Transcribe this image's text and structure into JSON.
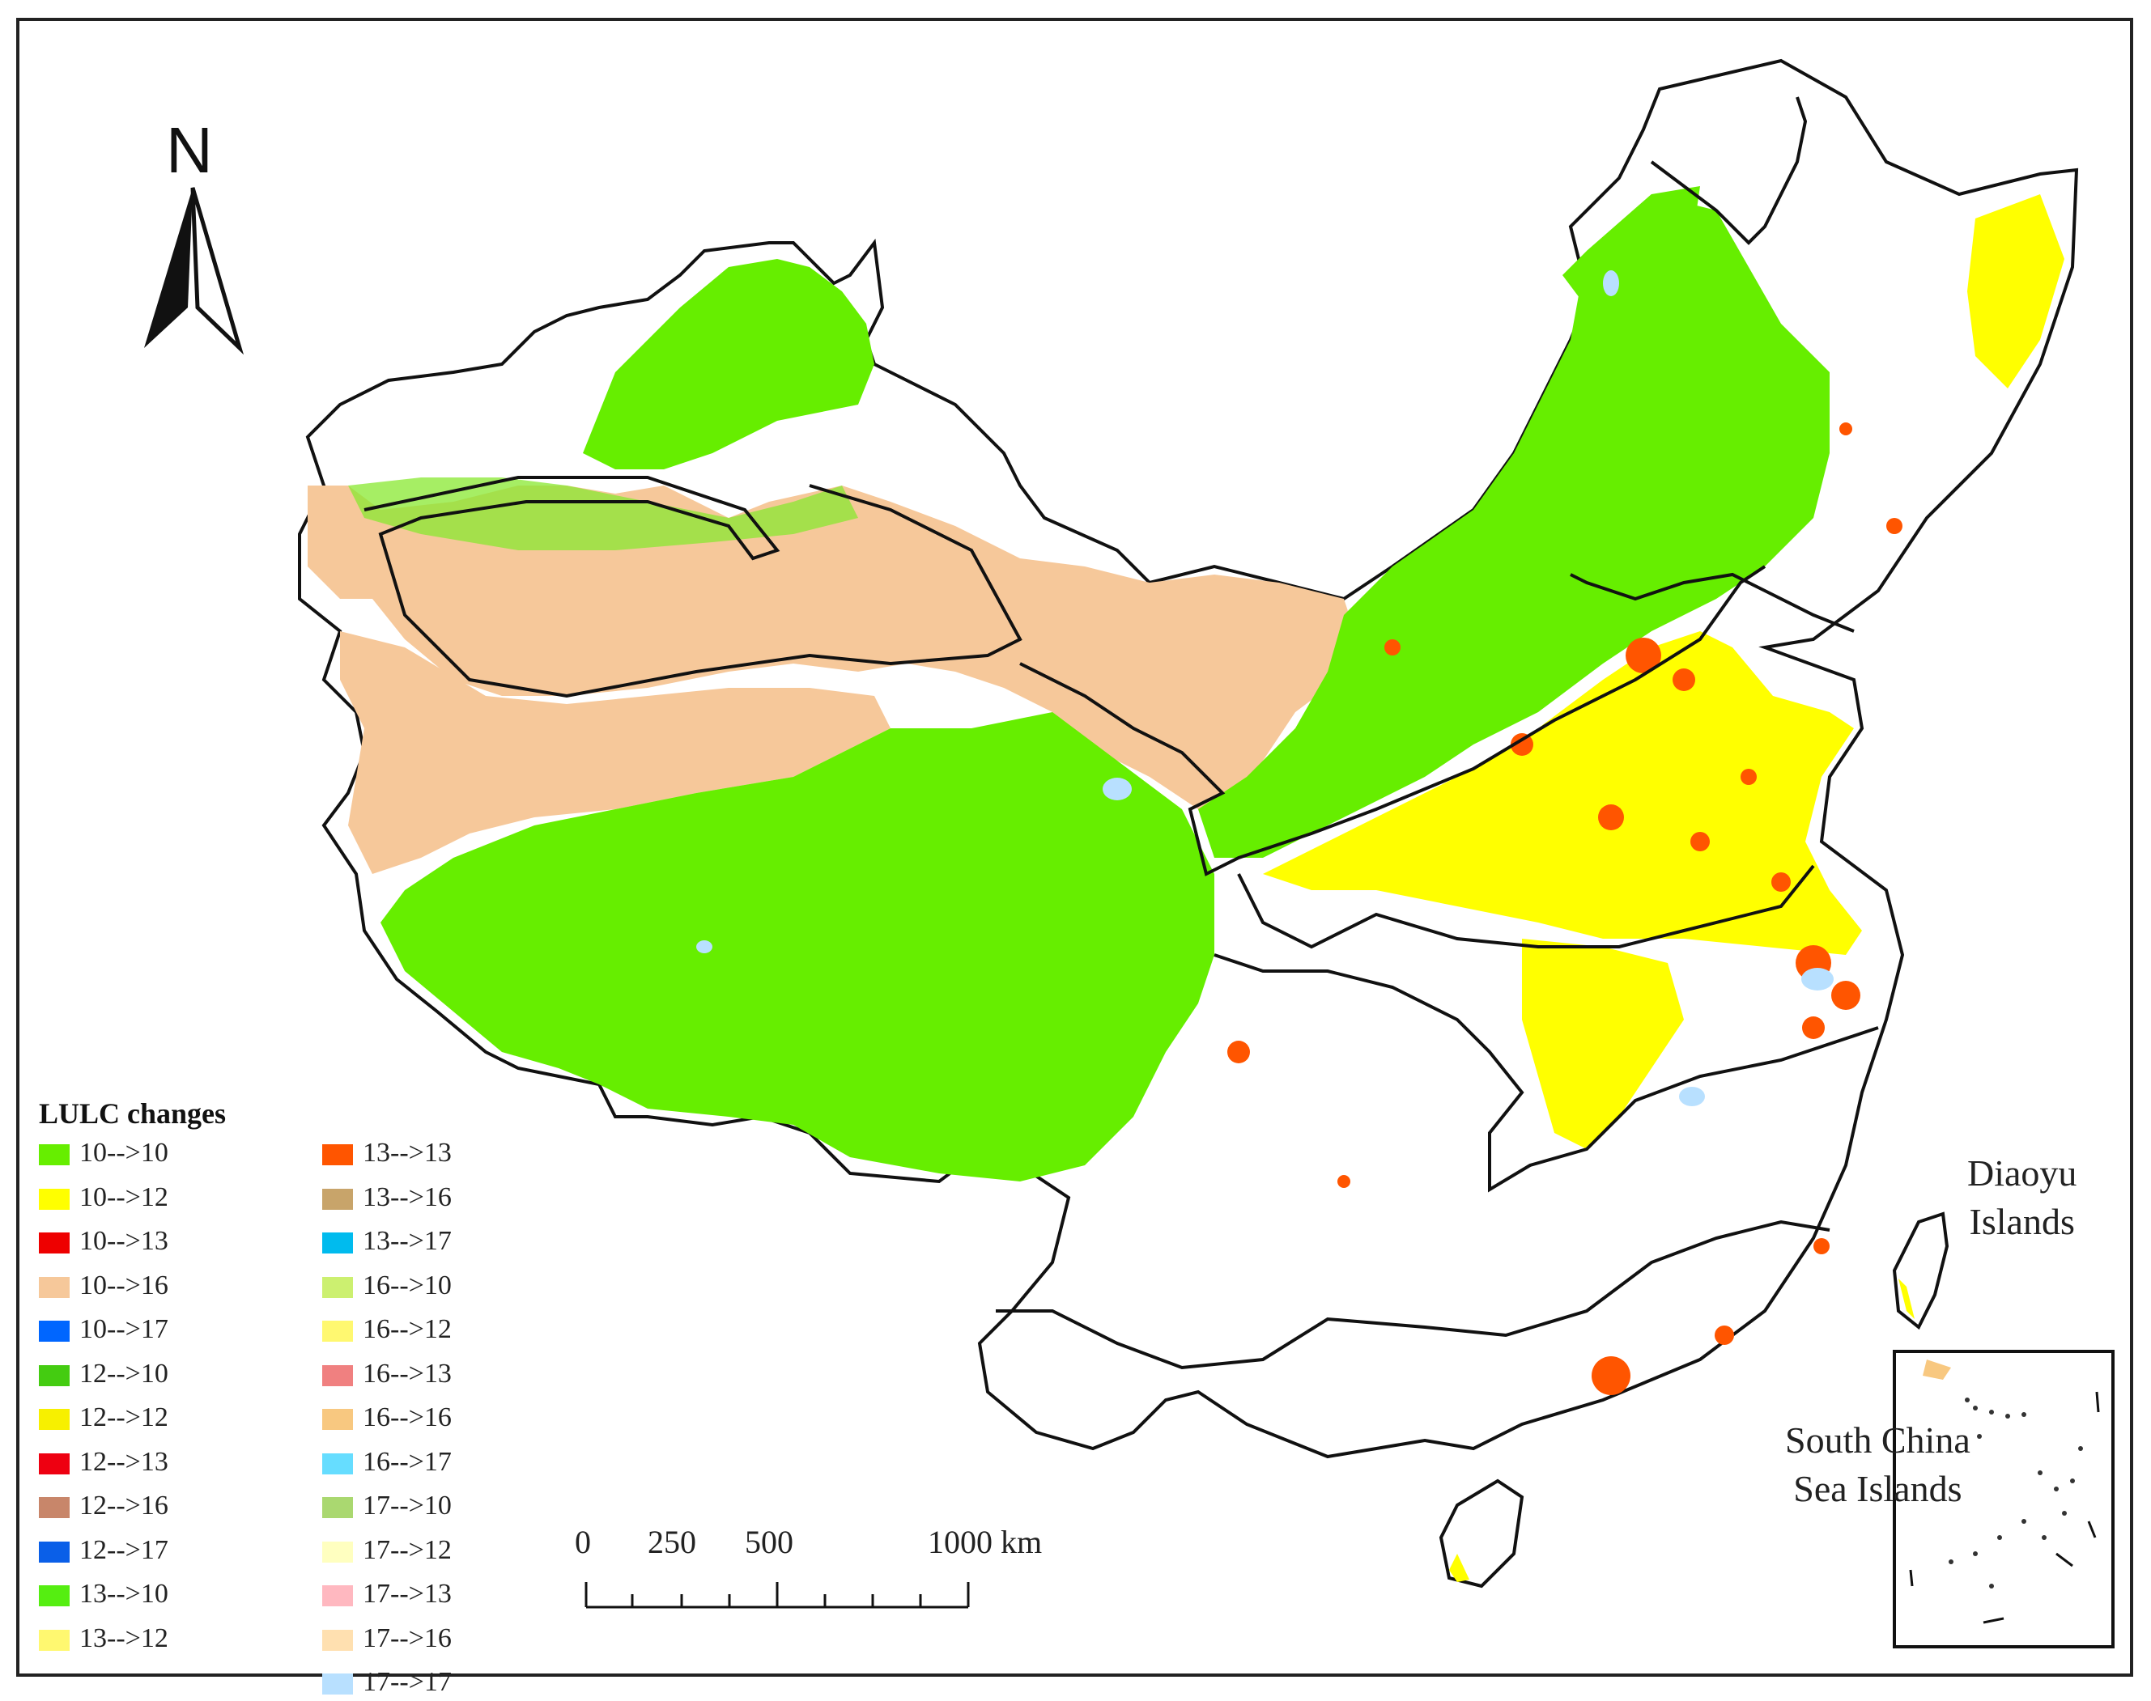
{
  "north_arrow": {
    "label": "N",
    "icon": "north-arrow-icon"
  },
  "legend": {
    "title": "LULC changes",
    "items": [
      {
        "label": "10-->10",
        "color": "#66ee00"
      },
      {
        "label": "10-->12",
        "color": "#ffff00"
      },
      {
        "label": "10-->13",
        "color": "#ee0000"
      },
      {
        "label": "10-->16",
        "color": "#f6c89a"
      },
      {
        "label": "10-->17",
        "color": "#0066ff"
      },
      {
        "label": "12-->10",
        "color": "#44cc11"
      },
      {
        "label": "12-->12",
        "color": "#f7f000"
      },
      {
        "label": "12-->13",
        "color": "#ee0011"
      },
      {
        "label": "12-->16",
        "color": "#c8866a"
      },
      {
        "label": "12-->17",
        "color": "#0a5fe8"
      },
      {
        "label": "13-->10",
        "color": "#55ee11"
      },
      {
        "label": "13-->12",
        "color": "#fff870"
      },
      {
        "label": "13-->13",
        "color": "#ff5500"
      },
      {
        "label": "13-->16",
        "color": "#c8a46a"
      },
      {
        "label": "13-->17",
        "color": "#00bbee"
      },
      {
        "label": "16-->10",
        "color": "#ccf070"
      },
      {
        "label": "16-->12",
        "color": "#fff870"
      },
      {
        "label": "16-->13",
        "color": "#f08080"
      },
      {
        "label": "16-->16",
        "color": "#f8c880"
      },
      {
        "label": "16-->17",
        "color": "#66ddff"
      },
      {
        "label": "17-->10",
        "color": "#aad870"
      },
      {
        "label": "17-->12",
        "color": "#ffffc0"
      },
      {
        "label": "17-->13",
        "color": "#ffb8c0"
      },
      {
        "label": "17-->16",
        "color": "#ffe0b0"
      },
      {
        "label": "17-->17",
        "color": "#b8e0ff"
      }
    ]
  },
  "scale_bar": {
    "labels": [
      "0",
      "250",
      "500",
      "1000 km"
    ]
  },
  "places": {
    "diaoyu": [
      "Diaoyu",
      "Islands"
    ],
    "south_china_sea": [
      "South China",
      "Sea Islands"
    ]
  }
}
